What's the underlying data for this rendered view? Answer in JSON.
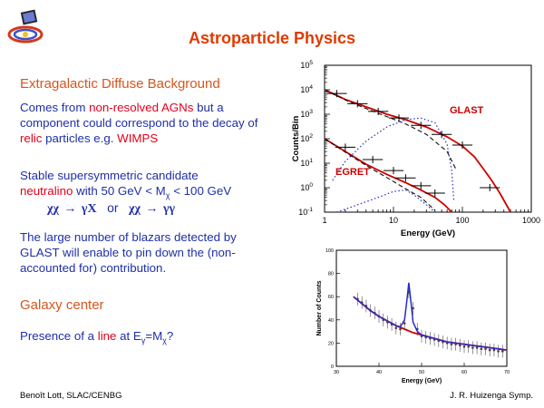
{
  "slide": {
    "title": "Astroparticle Physics",
    "section1": "Extragalactic Diffuse Background",
    "para1": {
      "p1": "Comes from ",
      "p2": "non-resolved AGNs",
      "p3": " but a component could correspond to the decay of ",
      "p4": "relic",
      "p5": "  particles e.g. ",
      "p6": "WIMPS"
    },
    "para2": {
      "p1": "Stable supersymmetric candidate",
      "p2": "neutralino",
      "p3": " with 50 GeV < M",
      "p3_sub": "χ",
      "p4": " < 100 GeV"
    },
    "formula": {
      "left": "χχ → γX",
      "or": "or",
      "right": "χχ → γγ"
    },
    "para3": "The large number of blazars detected by GLAST will enable to pin down the (non-accounted for) contribution.",
    "section2": "Galaxy center",
    "para4": {
      "p1": "Presence of a ",
      "p2": "line",
      "p3": " at E",
      "p3_sub": "γ",
      "p4": "=M",
      "p4_sub": "χ",
      "p5": "?"
    },
    "footer_left": "Benoît Lott, SLAC/CENBG",
    "footer_right": "J. R. Huizenga Symp."
  },
  "colors": {
    "title": "#e03a00",
    "section": "#d8551c",
    "body": "#1f2fa8",
    "highlight": "#e3001b",
    "curve_red": "#cc0000",
    "curve_blue": "#2a2acc"
  },
  "chart_data": [
    {
      "type": "line",
      "xlabel": "Energy   (GeV)",
      "ylabel": "Counts/Bin",
      "xscale": "log",
      "yscale": "log",
      "xlim": [
        1,
        1000
      ],
      "ylim": [
        0.1,
        100000
      ],
      "xticks": [
        "1",
        "10",
        "100",
        "1000"
      ],
      "yticks": [
        "10^-1",
        "10^0",
        "10^1",
        "10^2",
        "10^3",
        "10^4",
        "10^5"
      ],
      "annotations": [
        "GLAST",
        "EGRET"
      ],
      "series": [
        {
          "style": "red-solid",
          "x": [
            1,
            2,
            4,
            8,
            15,
            30,
            60,
            100,
            150,
            200,
            260,
            350,
            500
          ],
          "y": [
            10000,
            4000,
            2000,
            1000,
            600,
            300,
            120,
            50,
            18,
            6,
            2.2,
            0.6,
            0.1
          ]
        },
        {
          "style": "black-dashed",
          "x": [
            1,
            2,
            4,
            8,
            15,
            30,
            60,
            80
          ],
          "y": [
            10000,
            3800,
            1700,
            800,
            400,
            150,
            30,
            6
          ]
        },
        {
          "style": "blue-dotted",
          "x": [
            1.3,
            2,
            4,
            8,
            15,
            25,
            40,
            60,
            70,
            75
          ],
          "y": [
            2,
            12,
            80,
            300,
            600,
            700,
            450,
            60,
            5,
            0.3
          ]
        },
        {
          "style": "red-solid",
          "x": [
            1,
            2,
            4,
            8,
            15,
            25,
            40,
            55,
            70
          ],
          "y": [
            100,
            30,
            9,
            3.5,
            1.6,
            0.8,
            0.4,
            0.2,
            0.1
          ]
        },
        {
          "style": "black-dashed",
          "x": [
            1,
            2,
            4,
            8,
            15,
            25,
            40
          ],
          "y": [
            100,
            28,
            8,
            2.6,
            0.9,
            0.4,
            0.12
          ]
        },
        {
          "style": "blue-dotted",
          "x": [
            1.5,
            3,
            6,
            10,
            15,
            20,
            30,
            40
          ],
          "y": [
            0.1,
            0.2,
            0.4,
            0.7,
            0.8,
            0.5,
            0.2,
            0.1
          ]
        }
      ],
      "data_points": [
        {
          "x": 1.5,
          "y": 7000
        },
        {
          "x": 3,
          "y": 2700
        },
        {
          "x": 6,
          "y": 1300
        },
        {
          "x": 12,
          "y": 700
        },
        {
          "x": 25,
          "y": 350
        },
        {
          "x": 50,
          "y": 150
        },
        {
          "x": 100,
          "y": 55
        },
        {
          "x": 250,
          "y": 1.0
        },
        {
          "x": 2,
          "y": 45
        },
        {
          "x": 5,
          "y": 14
        },
        {
          "x": 10,
          "y": 5
        },
        {
          "x": 15,
          "y": 2.5
        },
        {
          "x": 25,
          "y": 1.2
        },
        {
          "x": 40,
          "y": 0.6
        }
      ]
    },
    {
      "type": "scatter",
      "xlabel": "Energy (GeV)",
      "ylabel": "Number of Counts",
      "xlim": [
        30,
        70
      ],
      "ylim": [
        0,
        100
      ],
      "xticks": [
        "30",
        "40",
        "50",
        "60",
        "70"
      ],
      "yticks": [
        "0",
        "20",
        "40",
        "60",
        "80",
        "100"
      ],
      "points_x": [
        35,
        36,
        37,
        38,
        39,
        40,
        41,
        42,
        43,
        44,
        45,
        46,
        47,
        48,
        49,
        50,
        51,
        52,
        53,
        54,
        55,
        56,
        57,
        58,
        59,
        60,
        61,
        62,
        63,
        64,
        65,
        66,
        67,
        68,
        69
      ],
      "points_y": [
        58,
        55,
        52,
        48,
        46,
        43,
        40,
        38,
        36,
        33,
        32,
        37,
        64,
        50,
        32,
        26,
        25,
        24,
        23,
        22,
        21,
        20,
        19,
        19,
        18,
        17,
        17,
        16,
        16,
        15,
        15,
        14,
        14,
        13,
        13
      ],
      "series": [
        {
          "style": "red-solid",
          "x": [
            34,
            36,
            38,
            40,
            42,
            44,
            46,
            48,
            50,
            52,
            54,
            56,
            58,
            60,
            62,
            64,
            66,
            68,
            70
          ],
          "y": [
            60,
            54,
            48,
            43,
            39,
            35,
            32,
            29,
            27,
            25,
            23,
            21,
            20,
            19,
            18,
            17,
            16,
            15,
            14
          ]
        },
        {
          "style": "blue-solid",
          "x": [
            34,
            36,
            38,
            40,
            42,
            44,
            45,
            46,
            46.5,
            47,
            47.5,
            48,
            49,
            50,
            52,
            56,
            60,
            64,
            68,
            70
          ],
          "y": [
            60,
            54,
            48,
            43,
            39,
            35,
            34,
            40,
            55,
            72,
            55,
            38,
            30,
            27,
            25,
            21,
            19,
            17,
            15,
            14
          ]
        }
      ]
    }
  ]
}
